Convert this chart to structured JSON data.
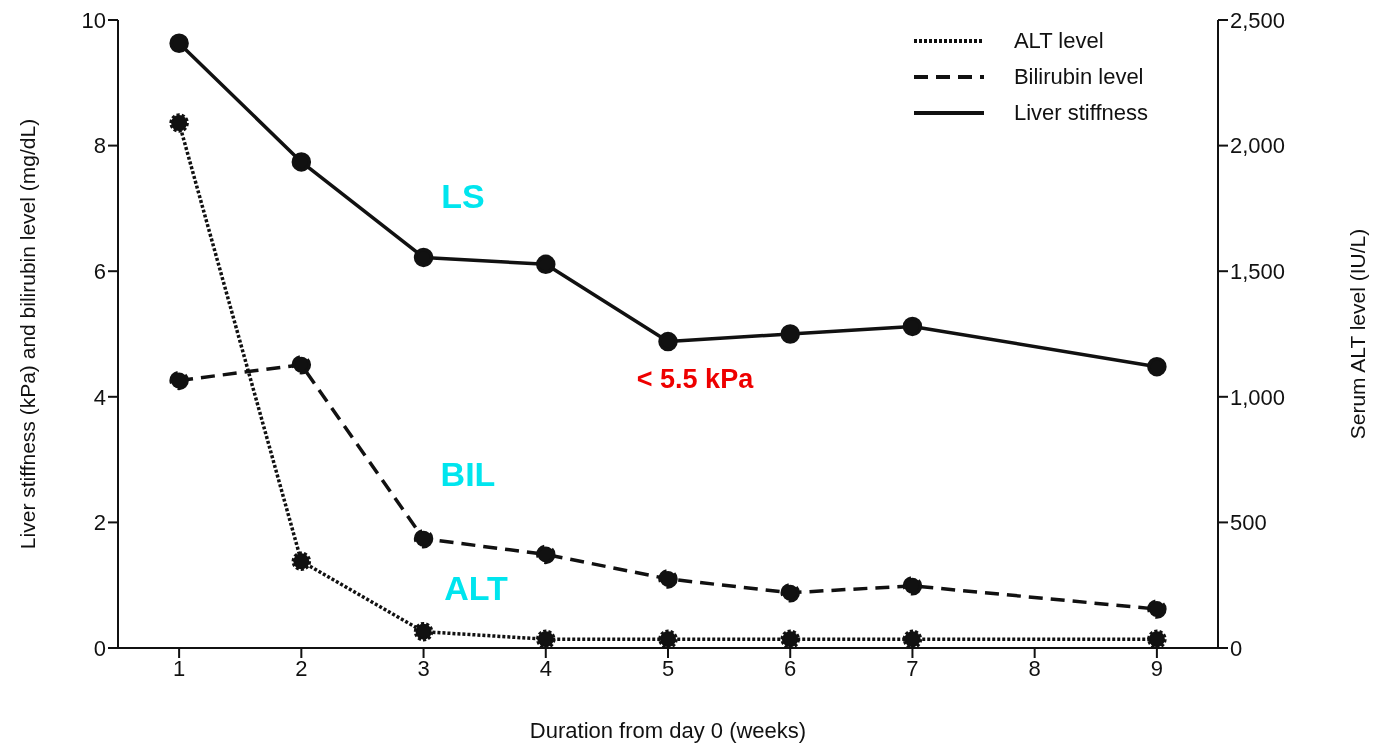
{
  "chart_data": {
    "type": "line",
    "xlabel": "Duration from day 0 (weeks)",
    "ylabel": "Liver stiffness (kPa) and bilirubin level (mg/dL)",
    "y2label": "Serum ALT level (IU/L)",
    "x": [
      1,
      2,
      3,
      4,
      5,
      6,
      7,
      9
    ],
    "series": [
      {
        "name": "ALT level",
        "color": "#111111",
        "line_style": "dotted",
        "axis": "y2",
        "values": [
          2090,
          345,
          65,
          35,
          35,
          35,
          35,
          35
        ]
      },
      {
        "name": "Bilirubin level",
        "color": "#111111",
        "line_style": "dashed",
        "values": [
          4.26,
          4.51,
          1.74,
          1.49,
          1.1,
          0.88,
          0.99,
          0.62
        ]
      },
      {
        "name": "Liver stiffness",
        "color": "#111111",
        "line_style": "solid",
        "values": [
          9.63,
          7.74,
          6.22,
          6.11,
          4.88,
          5.0,
          5.12,
          4.48
        ]
      }
    ],
    "xlim": [
      0.5,
      9.5
    ],
    "xticks": [
      1,
      2,
      3,
      4,
      5,
      6,
      7,
      8,
      9
    ],
    "ylim": [
      0,
      10
    ],
    "yticks": [
      0,
      2,
      4,
      6,
      8,
      10
    ],
    "y2lim": [
      0,
      2500
    ],
    "y2ticks": [
      0,
      500,
      {
        "value": 1000,
        "label": "1,000"
      },
      {
        "value": 1500,
        "label": "1,500"
      },
      {
        "value": 2000,
        "label": "2,000"
      },
      {
        "value": 2500,
        "label": "2,500"
      }
    ],
    "annotations": [
      "LS",
      "BIL",
      "ALT",
      "< 5.5 kPa"
    ],
    "marker": "circle",
    "grid": false,
    "legend": "top right"
  }
}
